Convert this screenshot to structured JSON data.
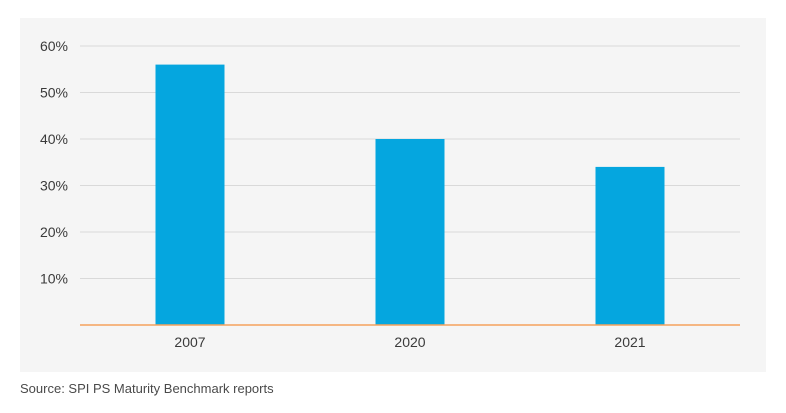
{
  "chart_data": {
    "type": "bar",
    "categories": [
      "2007",
      "2020",
      "2021"
    ],
    "values": [
      56,
      40,
      34
    ],
    "value_format": "percent",
    "ylim": [
      0,
      60
    ],
    "yticks": [
      10,
      20,
      30,
      40,
      50,
      60
    ],
    "ytick_labels": [
      "10%",
      "20%",
      "30%",
      "40%",
      "50%",
      "60%"
    ],
    "title": "",
    "xlabel": "",
    "ylabel": "",
    "grid": true,
    "legend": "none"
  },
  "colors": {
    "bar": "#05a6df",
    "grid": "#d9d9d9",
    "baseline": "#f5a25d",
    "panel": "#f5f5f5"
  },
  "footer": {
    "source": "Source: SPI PS Maturity Benchmark reports"
  }
}
